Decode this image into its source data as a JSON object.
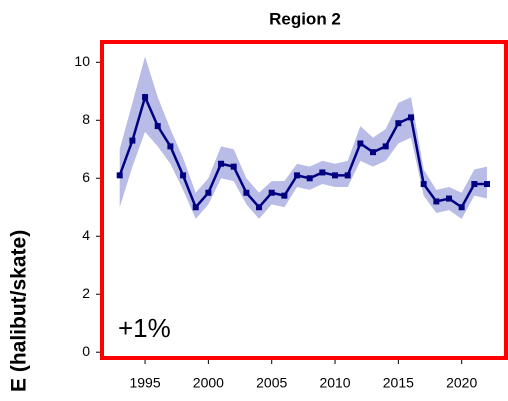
{
  "chart_data": {
    "type": "line",
    "title": "Region 2",
    "y_label": "E (halibut/skate)",
    "annotation": "+1%",
    "x": [
      1993,
      1994,
      1995,
      1996,
      1997,
      1998,
      1999,
      2000,
      2001,
      2002,
      2003,
      2004,
      2005,
      2006,
      2007,
      2008,
      2009,
      2010,
      2011,
      2012,
      2013,
      2014,
      2015,
      2016,
      2017,
      2018,
      2019,
      2020,
      2021,
      2022
    ],
    "series": [
      {
        "color": "#000080",
        "values": [
          6.1,
          7.3,
          8.8,
          7.8,
          7.1,
          6.1,
          5.0,
          5.5,
          6.5,
          6.4,
          5.5,
          5.0,
          5.5,
          5.4,
          6.1,
          6.0,
          6.2,
          6.1,
          6.1,
          7.2,
          6.9,
          7.1,
          7.9,
          8.1,
          5.8,
          5.2,
          5.3,
          5.0,
          5.8,
          5.8
        ]
      }
    ],
    "band": {
      "color": "#b8bce6",
      "upper": [
        7.0,
        8.6,
        10.2,
        8.8,
        7.7,
        6.7,
        5.5,
        6.0,
        7.1,
        7.0,
        6.0,
        5.5,
        5.9,
        5.9,
        6.5,
        6.4,
        6.6,
        6.5,
        6.6,
        7.8,
        7.4,
        7.7,
        8.6,
        8.8,
        6.3,
        5.6,
        5.7,
        5.5,
        6.3,
        6.4
      ],
      "lower": [
        5.0,
        6.4,
        7.6,
        7.1,
        6.5,
        5.6,
        4.6,
        5.1,
        6.0,
        5.9,
        5.1,
        4.6,
        5.1,
        5.0,
        5.7,
        5.6,
        5.8,
        5.7,
        5.7,
        6.6,
        6.4,
        6.6,
        7.2,
        7.4,
        5.4,
        4.8,
        4.9,
        4.6,
        5.4,
        5.3
      ]
    },
    "xlim": [
      1991.6,
      2023.5
    ],
    "xticks": [
      1995,
      2000,
      2005,
      2010,
      2015,
      2020
    ],
    "ylim": [
      -0.2,
      10.7
    ],
    "yticks": [
      0,
      2,
      4,
      6,
      8,
      10
    ],
    "border_color": "#ff0000"
  }
}
